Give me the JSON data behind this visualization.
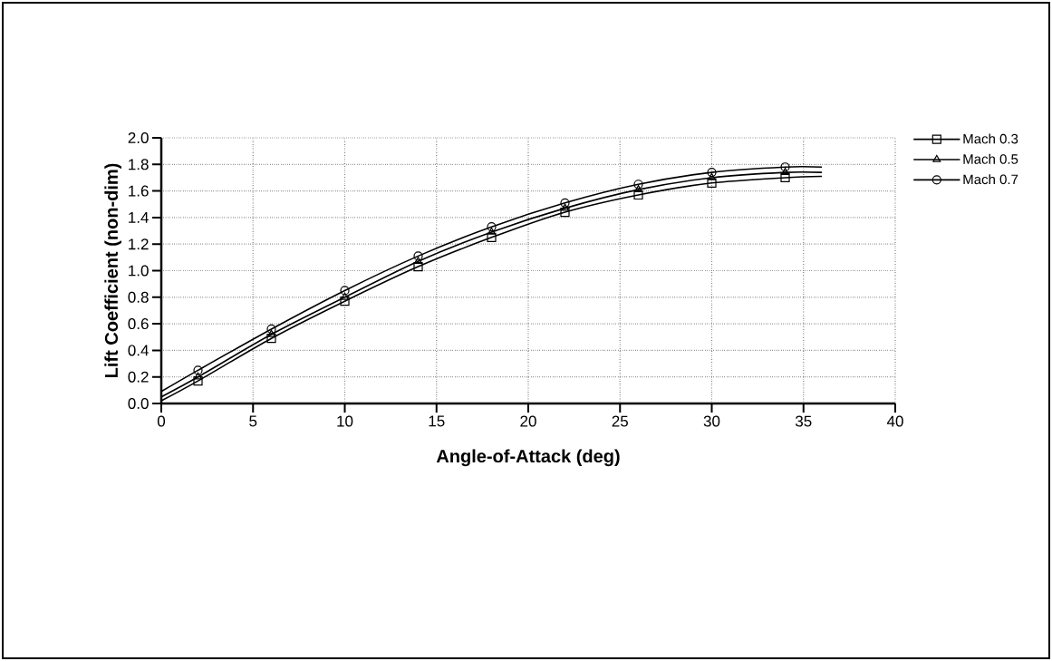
{
  "chart_data": {
    "type": "line",
    "xlabel": "Angle-of-Attack  (deg)",
    "ylabel": "Lift Coefficient  (non-dim)",
    "xlim": [
      0,
      40
    ],
    "ylim": [
      0,
      2
    ],
    "xticks": [
      0,
      5,
      10,
      15,
      20,
      25,
      30,
      35,
      40
    ],
    "yticks": [
      {
        "value": 0,
        "label": "0.0"
      },
      {
        "value": 0.2,
        "label": "0.2"
      },
      {
        "value": 0.4,
        "label": "0.4"
      },
      {
        "value": 0.6,
        "label": "0.6"
      },
      {
        "value": 0.8,
        "label": "0.8"
      },
      {
        "value": 1.0,
        "label": "1.0"
      },
      {
        "value": 1.2,
        "label": "1.2"
      },
      {
        "value": 1.4,
        "label": "1.4"
      },
      {
        "value": 1.6,
        "label": "1.6"
      },
      {
        "value": 1.8,
        "label": "1.8"
      },
      {
        "value": 2.0,
        "label": "2.0"
      }
    ],
    "grid": true,
    "legend": "top right",
    "line_style": "solid",
    "series": [
      {
        "marker": "none",
        "color": "#000000",
        "x": [
          0,
          2,
          6,
          10,
          14,
          18,
          22,
          26,
          30,
          34,
          36
        ],
        "values": [
          0.02,
          0.17,
          0.49,
          0.77,
          1.03,
          1.25,
          1.44,
          1.57,
          1.66,
          1.7,
          1.71
        ]
      },
      {
        "marker": "none",
        "color": "#000000",
        "x": [
          0,
          2,
          6,
          10,
          14,
          18,
          22,
          26,
          30,
          34,
          36
        ],
        "values": [
          0.05,
          0.2,
          0.52,
          0.8,
          1.07,
          1.29,
          1.47,
          1.61,
          1.7,
          1.74,
          1.74
        ]
      },
      {
        "marker": "none",
        "color": "#000000",
        "x": [
          0,
          2,
          6,
          10,
          14,
          18,
          22,
          26,
          30,
          34,
          36
        ],
        "values": [
          0.09,
          0.25,
          0.56,
          0.85,
          1.11,
          1.33,
          1.51,
          1.65,
          1.74,
          1.78,
          1.78
        ]
      },
      {
        "type": "scatter",
        "name": "Mach 0.3",
        "marker": "square",
        "color": "#000000",
        "x": [
          2,
          6,
          10,
          14,
          18,
          22,
          26,
          30,
          34
        ],
        "values": [
          0.17,
          0.49,
          0.77,
          1.03,
          1.25,
          1.44,
          1.57,
          1.66,
          1.7
        ]
      },
      {
        "type": "scatter",
        "name": "Mach 0.5",
        "marker": "triangle",
        "color": "#000000",
        "x": [
          2,
          6,
          10,
          14,
          18,
          22,
          26,
          30,
          34
        ],
        "values": [
          0.2,
          0.52,
          0.8,
          1.07,
          1.29,
          1.47,
          1.61,
          1.7,
          1.74
        ]
      },
      {
        "type": "scatter",
        "name": "Mach 0.7",
        "marker": "circle",
        "color": "#000000",
        "x": [
          2,
          6,
          10,
          14,
          18,
          22,
          26,
          30,
          34
        ],
        "values": [
          0.25,
          0.56,
          0.85,
          1.11,
          1.33,
          1.51,
          1.65,
          1.74,
          1.78
        ]
      }
    ]
  }
}
